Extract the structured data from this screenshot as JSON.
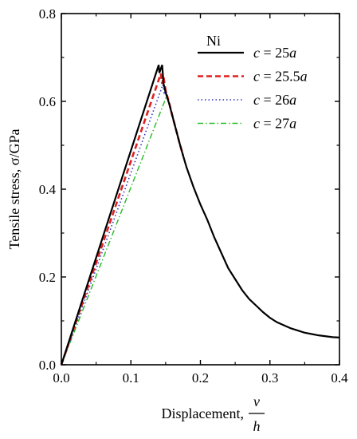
{
  "chart_data": {
    "type": "line",
    "xlabel": "Displacement,",
    "xlabel_fraction": {
      "numerator": "v",
      "denominator": "h"
    },
    "ylabel": "Tensile stress, σ/GPa",
    "xlim": [
      0.0,
      0.4
    ],
    "ylim": [
      0.0,
      0.8
    ],
    "x_ticks": [
      "0.0",
      "0.1",
      "0.2",
      "0.3",
      "0.4"
    ],
    "y_ticks": [
      "0.0",
      "0.2",
      "0.4",
      "0.6",
      "0.8"
    ],
    "grid": false,
    "legend_position": "top-right",
    "legend_title": "Ni",
    "series": [
      {
        "name": "c = 25a",
        "name_parts": {
          "var": "c",
          "eq": " = 25",
          "unit": "a"
        },
        "color": "#000000",
        "dash": "solid",
        "points": [
          [
            0.0,
            0.0
          ],
          [
            0.14,
            0.683
          ],
          [
            0.141,
            0.665
          ],
          [
            0.145,
            0.683
          ],
          [
            0.147,
            0.64
          ],
          [
            0.15,
            0.62
          ],
          [
            0.155,
            0.595
          ],
          [
            0.16,
            0.565
          ],
          [
            0.165,
            0.535
          ],
          [
            0.17,
            0.505
          ],
          [
            0.175,
            0.477
          ],
          [
            0.18,
            0.45
          ],
          [
            0.19,
            0.405
          ],
          [
            0.2,
            0.365
          ],
          [
            0.21,
            0.33
          ],
          [
            0.22,
            0.29
          ],
          [
            0.23,
            0.255
          ],
          [
            0.24,
            0.22
          ],
          [
            0.25,
            0.195
          ],
          [
            0.26,
            0.17
          ],
          [
            0.27,
            0.15
          ],
          [
            0.28,
            0.135
          ],
          [
            0.29,
            0.12
          ],
          [
            0.3,
            0.107
          ],
          [
            0.31,
            0.097
          ],
          [
            0.32,
            0.09
          ],
          [
            0.33,
            0.083
          ],
          [
            0.34,
            0.078
          ],
          [
            0.35,
            0.073
          ],
          [
            0.36,
            0.07
          ],
          [
            0.37,
            0.067
          ],
          [
            0.38,
            0.065
          ],
          [
            0.39,
            0.063
          ],
          [
            0.4,
            0.062
          ]
        ]
      },
      {
        "name": "c = 25.5a",
        "name_parts": {
          "var": "c",
          "eq": " = 25.5",
          "unit": "a"
        },
        "color": "#e02020",
        "dash": "dashed",
        "points": [
          [
            0.0,
            0.0
          ],
          [
            0.143,
            0.663
          ],
          [
            0.145,
            0.64
          ],
          [
            0.147,
            0.655
          ],
          [
            0.15,
            0.625
          ],
          [
            0.155,
            0.597
          ],
          [
            0.16,
            0.565
          ],
          [
            0.165,
            0.535
          ],
          [
            0.17,
            0.505
          ],
          [
            0.175,
            0.477
          ]
        ]
      },
      {
        "name": "c = 26a",
        "name_parts": {
          "var": "c",
          "eq": " = 26",
          "unit": "a"
        },
        "color": "#3030c0",
        "dash": "dotted",
        "points": [
          [
            0.0,
            0.0
          ],
          [
            0.146,
            0.638
          ],
          [
            0.148,
            0.62
          ],
          [
            0.15,
            0.628
          ],
          [
            0.155,
            0.598
          ],
          [
            0.16,
            0.565
          ],
          [
            0.165,
            0.535
          ],
          [
            0.17,
            0.505
          ],
          [
            0.175,
            0.477
          ]
        ]
      },
      {
        "name": "c = 27a",
        "name_parts": {
          "var": "c",
          "eq": " = 27",
          "unit": "a"
        },
        "color": "#22bb22",
        "dash": "dashdot",
        "points": [
          [
            0.0,
            0.0
          ],
          [
            0.149,
            0.602
          ],
          [
            0.151,
            0.612
          ],
          [
            0.155,
            0.595
          ],
          [
            0.16,
            0.565
          ],
          [
            0.165,
            0.535
          ],
          [
            0.17,
            0.505
          ],
          [
            0.175,
            0.477
          ]
        ]
      }
    ]
  }
}
